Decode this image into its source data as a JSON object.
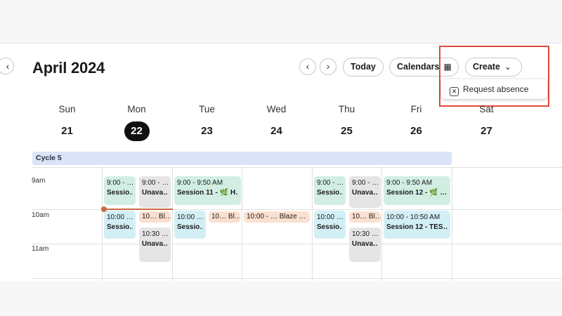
{
  "calendar": {
    "title": "April 2024",
    "today_label": "Today",
    "calendars_label": "Calendars",
    "create_label": "Create",
    "dropdown": {
      "request_absence": "Request absence"
    },
    "cycle_label": "Cycle 5",
    "days": [
      {
        "name": "Sun",
        "num": "21"
      },
      {
        "name": "Mon",
        "num": "22",
        "today": true
      },
      {
        "name": "Tue",
        "num": "23"
      },
      {
        "name": "Wed",
        "num": "24"
      },
      {
        "name": "Thu",
        "num": "25"
      },
      {
        "name": "Fri",
        "num": "26"
      },
      {
        "name": "Sat",
        "num": "27"
      }
    ],
    "times": [
      "9am",
      "10am",
      "11am"
    ],
    "events": {
      "mon_1": {
        "time": "9:00 - …",
        "name": "Sessio…"
      },
      "mon_2": {
        "time": "9:00 - …",
        "name": "Unava…"
      },
      "mon_3": {
        "time": "10:00 …",
        "name": "Sessio…"
      },
      "mon_4": {
        "text": "10… Bl…"
      },
      "mon_5": {
        "time": "10:30 …",
        "name": "Unava…"
      },
      "tue_1": {
        "time": "9:00 - 9:50 AM",
        "name": "Session 11 - 🌿 H…"
      },
      "tue_2": {
        "time": "10:00 …",
        "name": "Sessio…"
      },
      "tue_3": {
        "text": "10… Bl…"
      },
      "wed_1": {
        "text": "10:00 - … Blaze …"
      },
      "thu_1": {
        "time": "9:00 - …",
        "name": "Sessio…"
      },
      "thu_2": {
        "time": "9:00 - …",
        "name": "Unava…"
      },
      "thu_3": {
        "time": "10:00 …",
        "name": "Sessio…"
      },
      "thu_4": {
        "text": "10… Bl…"
      },
      "thu_5": {
        "time": "10:30 …",
        "name": "Unava…"
      },
      "fri_1": {
        "time": "9:00 - 9:50 AM",
        "name": "Session 12 - 🌿 …"
      },
      "fri_2": {
        "time": "10:00 - 10:50 AM",
        "name": "Session 12 - TES…"
      }
    }
  },
  "colors": {
    "highlight_box": "#e04a3a",
    "now_line": "#c86a40",
    "session_green": "#d2eee3",
    "session_cyan": "#d2eff5",
    "unavailable_gray": "#e5e5e5",
    "blaze_peach": "#fbe0cf",
    "cycle_blue": "#dbe4f7"
  },
  "icons": {
    "back": "chevron-left-icon",
    "prev": "chevron-left-icon",
    "next": "chevron-right-icon",
    "calendar": "calendar-icon",
    "create_caret": "chevron-down-icon",
    "absence": "x-square-icon"
  }
}
